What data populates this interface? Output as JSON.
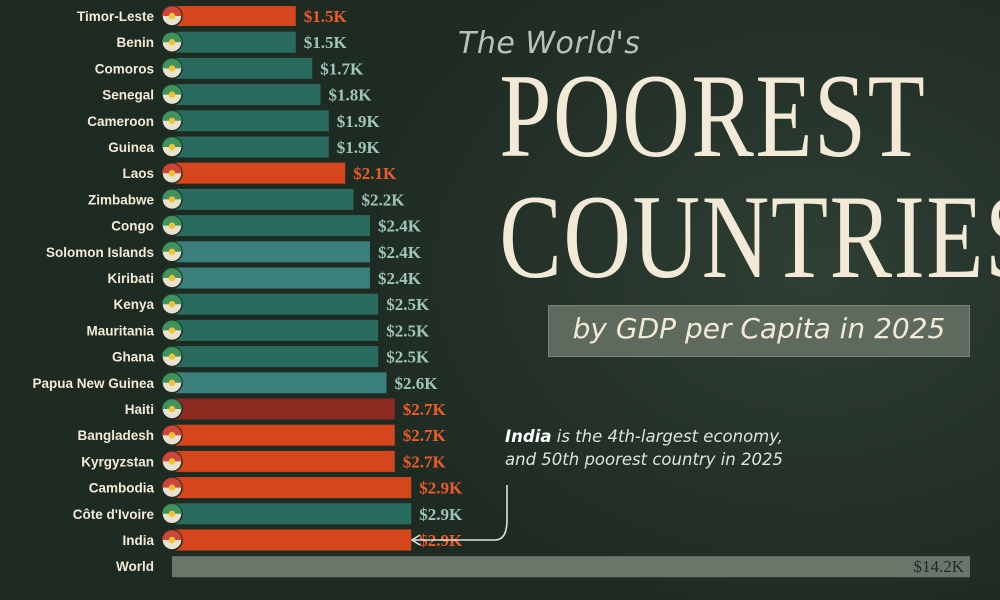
{
  "title": {
    "kicker": "The World's",
    "line1": "POOREST",
    "line2": "COUNTRIES",
    "subtitle": "by GDP per Capita in 2025"
  },
  "annotation": {
    "highlight": "India",
    "line1_rest": " is the 4th-largest economy,",
    "line2": "and 50th poorest country in 2025"
  },
  "colors": {
    "background": "#1e2b23",
    "bar_teal": "#2a6b5f",
    "bar_orange": "#d6461c",
    "bar_dark_red": "#8c2a20",
    "bar_light_teal": "#3a7f7c",
    "bar_world": "#6b766b",
    "value_teal": "#9fc5b8",
    "value_orange": "#ef5a26",
    "label": "#f2ead6"
  },
  "chart_data": {
    "type": "bar",
    "orientation": "horizontal",
    "categories": [
      "Timor-Leste",
      "Benin",
      "Comoros",
      "Senegal",
      "Cameroon",
      "Guinea",
      "Laos",
      "Zimbabwe",
      "Congo",
      "Solomon Islands",
      "Kiribati",
      "Kenya",
      "Mauritania",
      "Ghana",
      "Papua New Guinea",
      "Haiti",
      "Bangladesh",
      "Kyrgyzstan",
      "Cambodia",
      "Côte d'Ivoire",
      "India",
      "World"
    ],
    "values": [
      1.5,
      1.5,
      1.7,
      1.8,
      1.9,
      1.9,
      2.1,
      2.2,
      2.4,
      2.4,
      2.4,
      2.5,
      2.5,
      2.5,
      2.6,
      2.7,
      2.7,
      2.7,
      2.9,
      2.9,
      2.9,
      14.2
    ],
    "value_labels": [
      "$1.5K",
      "$1.5K",
      "$1.7K",
      "$1.8K",
      "$1.9K",
      "$1.9K",
      "$2.1K",
      "$2.2K",
      "$2.4K",
      "$2.4K",
      "$2.4K",
      "$2.5K",
      "$2.5K",
      "$2.5K",
      "$2.6K",
      "$2.7K",
      "$2.7K",
      "$2.7K",
      "$2.9K",
      "$2.9K",
      "$2.9K",
      "$14.2K"
    ],
    "bar_color_groups": [
      "orange",
      "teal",
      "teal",
      "teal",
      "teal",
      "teal",
      "orange",
      "teal",
      "teal",
      "lightteal",
      "lightteal",
      "teal",
      "teal",
      "teal",
      "lightteal",
      "darkred",
      "orange",
      "orange",
      "orange",
      "teal",
      "orange",
      "world"
    ],
    "flags": [
      "Timor-Leste flag",
      "Benin flag",
      "Comoros flag",
      "Senegal flag",
      "Cameroon flag",
      "Guinea flag",
      "Laos flag",
      "Zimbabwe flag",
      "Congo flag",
      "Solomon Islands flag",
      "Kiribati flag",
      "Kenya flag",
      "Mauritania flag",
      "Ghana flag",
      "Papua New Guinea flag",
      "Haiti flag",
      "Bangladesh flag",
      "Kyrgyzstan flag",
      "Cambodia flag",
      "Côte d'Ivoire flag",
      "India flag",
      ""
    ],
    "unit": "USD thousands per capita"
  }
}
